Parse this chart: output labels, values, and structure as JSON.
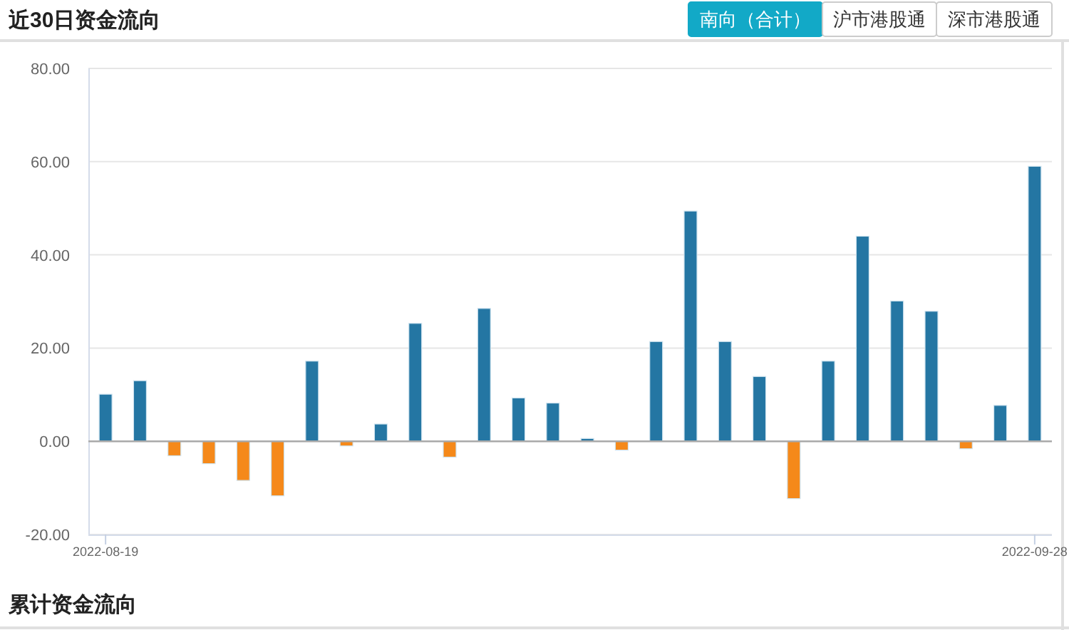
{
  "chart_data": {
    "type": "bar",
    "title": "近30日资金流向",
    "categories": [
      "2022-08-19",
      null,
      null,
      null,
      null,
      null,
      null,
      null,
      null,
      null,
      null,
      null,
      null,
      null,
      null,
      null,
      null,
      null,
      null,
      null,
      null,
      null,
      null,
      null,
      null,
      null,
      null,
      "2022-09-28"
    ],
    "values": [
      10.1,
      13.0,
      -3.1,
      -4.8,
      -8.4,
      -11.7,
      17.2,
      -1.0,
      3.7,
      25.3,
      -3.4,
      28.5,
      9.3,
      8.2,
      0.6,
      -1.9,
      21.4,
      49.4,
      21.4,
      13.9,
      -12.3,
      17.2,
      44.0,
      30.1,
      27.9,
      -1.6,
      7.7,
      59.0
    ],
    "colors": [
      "#2476a3",
      "#2476a3",
      "#f5891a",
      "#f5891a",
      "#f5891a",
      "#f5891a",
      "#2476a3",
      "#f5891a",
      "#2476a3",
      "#2476a3",
      "#f5891a",
      "#2476a3",
      "#2476a3",
      "#2476a3",
      "#2476a3",
      "#f5891a",
      "#2476a3",
      "#2476a3",
      "#2476a3",
      "#2476a3",
      "#f5891a",
      "#2476a3",
      "#2476a3",
      "#2476a3",
      "#2476a3",
      "#f5891a",
      "#2476a3",
      "#2476a3"
    ],
    "ylim": [
      -20,
      80
    ],
    "yticks": [
      {
        "value": -20,
        "label": "-20.00"
      },
      {
        "value": 0,
        "label": "0.00"
      },
      {
        "value": 20,
        "label": "20.00"
      },
      {
        "value": 40,
        "label": "40.00"
      },
      {
        "value": 60,
        "label": "60.00"
      },
      {
        "value": 80,
        "label": "80.00"
      }
    ],
    "grid": "y",
    "annotations": [
      "南向（合计）",
      "沪市港股通",
      "深市港股通",
      "累计资金流向"
    ]
  }
}
